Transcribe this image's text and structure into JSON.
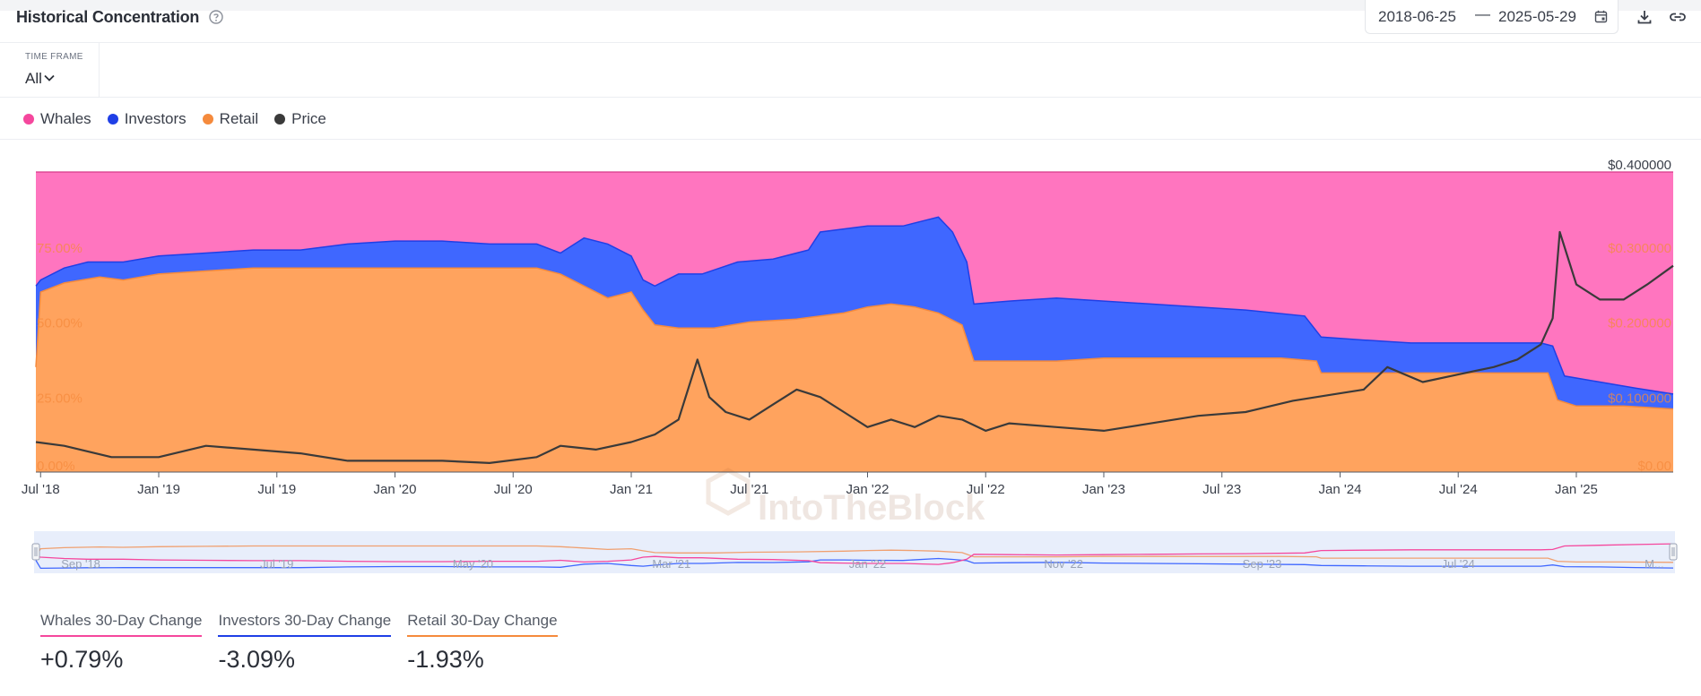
{
  "header": {
    "title": "Historical Concentration",
    "date_start": "2018-06-25",
    "date_separator": "—",
    "date_end": "2025-05-29",
    "icons": [
      "help-icon",
      "calendar-icon",
      "download-icon",
      "link-icon"
    ]
  },
  "time_frame": {
    "label": "TIME FRAME",
    "value": "All"
  },
  "legend": [
    {
      "key": "whales",
      "label": "Whales",
      "color": "#f5479d"
    },
    {
      "key": "investors",
      "label": "Investors",
      "color": "#1f3fe6"
    },
    {
      "key": "retail",
      "label": "Retail",
      "color": "#f58a3c"
    },
    {
      "key": "price",
      "label": "Price",
      "color": "#3a3a3a"
    }
  ],
  "watermark": "IntoTheBlock",
  "chart_data": {
    "type": "area",
    "title": "Historical Concentration",
    "stacked_percent": true,
    "colors": {
      "whales": "#ff75bf",
      "investors": "#3f67ff",
      "retail": "#ffa35e",
      "price": "#3a3a3a"
    },
    "x_start": 2018.48,
    "x_end": 2025.41,
    "x_ticks": [
      {
        "label": "Jul '18",
        "t": 2018.5
      },
      {
        "label": "Jan '19",
        "t": 2019.0
      },
      {
        "label": "Jul '19",
        "t": 2019.5
      },
      {
        "label": "Jan '20",
        "t": 2020.0
      },
      {
        "label": "Jul '20",
        "t": 2020.5
      },
      {
        "label": "Jan '21",
        "t": 2021.0
      },
      {
        "label": "Jul '21",
        "t": 2021.5
      },
      {
        "label": "Jan '22",
        "t": 2022.0
      },
      {
        "label": "Jul '22",
        "t": 2022.5
      },
      {
        "label": "Jan '23",
        "t": 2023.0
      },
      {
        "label": "Jul '23",
        "t": 2023.5
      },
      {
        "label": "Jan '24",
        "t": 2024.0
      },
      {
        "label": "Jul '24",
        "t": 2024.5
      },
      {
        "label": "Jan '25",
        "t": 2025.0
      }
    ],
    "y_left": {
      "ticks": [
        "0.00%",
        "25.00%",
        "50.00%",
        "75.00%"
      ],
      "values": [
        0,
        25,
        50,
        75
      ],
      "max": 100
    },
    "y_right": {
      "ticks": [
        "$0.00",
        "$0.100000",
        "$0.200000",
        "$0.300000",
        "$0.400000"
      ],
      "values": [
        0,
        0.1,
        0.2,
        0.3,
        0.4
      ],
      "max": 0.4
    },
    "series": [
      {
        "name": "Retail",
        "unit": "%",
        "points": [
          [
            2018.48,
            35
          ],
          [
            2018.5,
            60
          ],
          [
            2018.6,
            63
          ],
          [
            2018.75,
            65
          ],
          [
            2018.85,
            64
          ],
          [
            2019.0,
            66
          ],
          [
            2019.2,
            67
          ],
          [
            2019.4,
            68
          ],
          [
            2019.6,
            68
          ],
          [
            2020.0,
            68
          ],
          [
            2020.4,
            68
          ],
          [
            2020.6,
            68
          ],
          [
            2020.7,
            66
          ],
          [
            2020.8,
            62
          ],
          [
            2020.9,
            58
          ],
          [
            2021.0,
            60
          ],
          [
            2021.05,
            54
          ],
          [
            2021.1,
            49
          ],
          [
            2021.2,
            48
          ],
          [
            2021.35,
            48
          ],
          [
            2021.5,
            50
          ],
          [
            2021.7,
            51
          ],
          [
            2021.9,
            53
          ],
          [
            2022.0,
            55
          ],
          [
            2022.1,
            56
          ],
          [
            2022.2,
            55
          ],
          [
            2022.3,
            53
          ],
          [
            2022.4,
            49
          ],
          [
            2022.45,
            37
          ],
          [
            2022.6,
            37
          ],
          [
            2022.8,
            37
          ],
          [
            2023.0,
            38
          ],
          [
            2023.2,
            38
          ],
          [
            2023.4,
            38
          ],
          [
            2023.6,
            38
          ],
          [
            2023.75,
            38
          ],
          [
            2023.9,
            37
          ],
          [
            2023.92,
            33
          ],
          [
            2024.1,
            33
          ],
          [
            2024.3,
            33
          ],
          [
            2024.5,
            33
          ],
          [
            2024.8,
            33
          ],
          [
            2024.88,
            33
          ],
          [
            2024.92,
            24
          ],
          [
            2025.0,
            22
          ],
          [
            2025.2,
            22
          ],
          [
            2025.41,
            21
          ]
        ]
      },
      {
        "name": "Investors",
        "unit": "%",
        "points": [
          [
            2018.48,
            62
          ],
          [
            2018.5,
            64
          ],
          [
            2018.6,
            68
          ],
          [
            2018.7,
            70
          ],
          [
            2018.85,
            70
          ],
          [
            2019.0,
            72
          ],
          [
            2019.2,
            73
          ],
          [
            2019.4,
            74
          ],
          [
            2019.6,
            74
          ],
          [
            2019.8,
            76
          ],
          [
            2020.0,
            77
          ],
          [
            2020.2,
            77
          ],
          [
            2020.4,
            76
          ],
          [
            2020.6,
            76
          ],
          [
            2020.7,
            73
          ],
          [
            2020.8,
            78
          ],
          [
            2020.9,
            76
          ],
          [
            2021.0,
            72
          ],
          [
            2021.05,
            64
          ],
          [
            2021.1,
            62
          ],
          [
            2021.2,
            66
          ],
          [
            2021.3,
            66
          ],
          [
            2021.45,
            70
          ],
          [
            2021.6,
            71
          ],
          [
            2021.75,
            74
          ],
          [
            2021.8,
            80
          ],
          [
            2021.9,
            81
          ],
          [
            2022.0,
            82
          ],
          [
            2022.15,
            82
          ],
          [
            2022.3,
            85
          ],
          [
            2022.36,
            80
          ],
          [
            2022.42,
            70
          ],
          [
            2022.45,
            56
          ],
          [
            2022.6,
            57
          ],
          [
            2022.8,
            58
          ],
          [
            2023.0,
            57
          ],
          [
            2023.2,
            56
          ],
          [
            2023.4,
            55
          ],
          [
            2023.6,
            54
          ],
          [
            2023.85,
            52
          ],
          [
            2023.92,
            45
          ],
          [
            2024.1,
            44
          ],
          [
            2024.3,
            43
          ],
          [
            2024.6,
            43
          ],
          [
            2024.85,
            43
          ],
          [
            2024.9,
            42
          ],
          [
            2024.95,
            32
          ],
          [
            2025.1,
            30
          ],
          [
            2025.25,
            28
          ],
          [
            2025.41,
            26
          ]
        ]
      },
      {
        "name": "Whales",
        "unit": "%",
        "points": [
          [
            2018.48,
            100
          ],
          [
            2025.41,
            100
          ]
        ]
      },
      {
        "name": "Price",
        "unit": "$",
        "axis": "right",
        "points": [
          [
            2018.48,
            0.04
          ],
          [
            2018.6,
            0.035
          ],
          [
            2018.8,
            0.02
          ],
          [
            2019.0,
            0.02
          ],
          [
            2019.2,
            0.035
          ],
          [
            2019.4,
            0.03
          ],
          [
            2019.6,
            0.025
          ],
          [
            2019.8,
            0.015
          ],
          [
            2020.0,
            0.015
          ],
          [
            2020.2,
            0.015
          ],
          [
            2020.4,
            0.012
          ],
          [
            2020.6,
            0.02
          ],
          [
            2020.7,
            0.035
          ],
          [
            2020.85,
            0.03
          ],
          [
            2021.0,
            0.04
          ],
          [
            2021.1,
            0.05
          ],
          [
            2021.2,
            0.07
          ],
          [
            2021.28,
            0.15
          ],
          [
            2021.33,
            0.1
          ],
          [
            2021.4,
            0.08
          ],
          [
            2021.5,
            0.07
          ],
          [
            2021.6,
            0.09
          ],
          [
            2021.7,
            0.11
          ],
          [
            2021.8,
            0.1
          ],
          [
            2021.9,
            0.08
          ],
          [
            2022.0,
            0.06
          ],
          [
            2022.1,
            0.07
          ],
          [
            2022.2,
            0.06
          ],
          [
            2022.3,
            0.075
          ],
          [
            2022.4,
            0.07
          ],
          [
            2022.5,
            0.055
          ],
          [
            2022.6,
            0.065
          ],
          [
            2022.8,
            0.06
          ],
          [
            2023.0,
            0.055
          ],
          [
            2023.2,
            0.065
          ],
          [
            2023.4,
            0.075
          ],
          [
            2023.6,
            0.08
          ],
          [
            2023.8,
            0.095
          ],
          [
            2024.0,
            0.105
          ],
          [
            2024.1,
            0.11
          ],
          [
            2024.2,
            0.14
          ],
          [
            2024.35,
            0.12
          ],
          [
            2024.5,
            0.13
          ],
          [
            2024.65,
            0.14
          ],
          [
            2024.75,
            0.15
          ],
          [
            2024.85,
            0.17
          ],
          [
            2024.9,
            0.205
          ],
          [
            2024.93,
            0.32
          ],
          [
            2025.0,
            0.25
          ],
          [
            2025.1,
            0.23
          ],
          [
            2025.2,
            0.23
          ],
          [
            2025.3,
            0.25
          ],
          [
            2025.41,
            0.275
          ]
        ]
      }
    ],
    "navigator": {
      "labels": [
        "Sep '18",
        "Jul '19",
        "May '20",
        "Mar '21",
        "Jan '22",
        "Nov '22",
        "Sep '23",
        "Jul '24",
        "M..."
      ],
      "label_t": [
        2018.67,
        2019.5,
        2020.33,
        2021.17,
        2022.0,
        2022.83,
        2023.67,
        2024.5,
        2025.33
      ]
    }
  },
  "stats": [
    {
      "label": "Whales 30-Day Change",
      "value": "+0.79%",
      "color": "#f5479d"
    },
    {
      "label": "Investors 30-Day Change",
      "value": "-3.09%",
      "color": "#1f3fe6"
    },
    {
      "label": "Retail 30-Day Change",
      "value": "-1.93%",
      "color": "#f58a3c"
    }
  ]
}
